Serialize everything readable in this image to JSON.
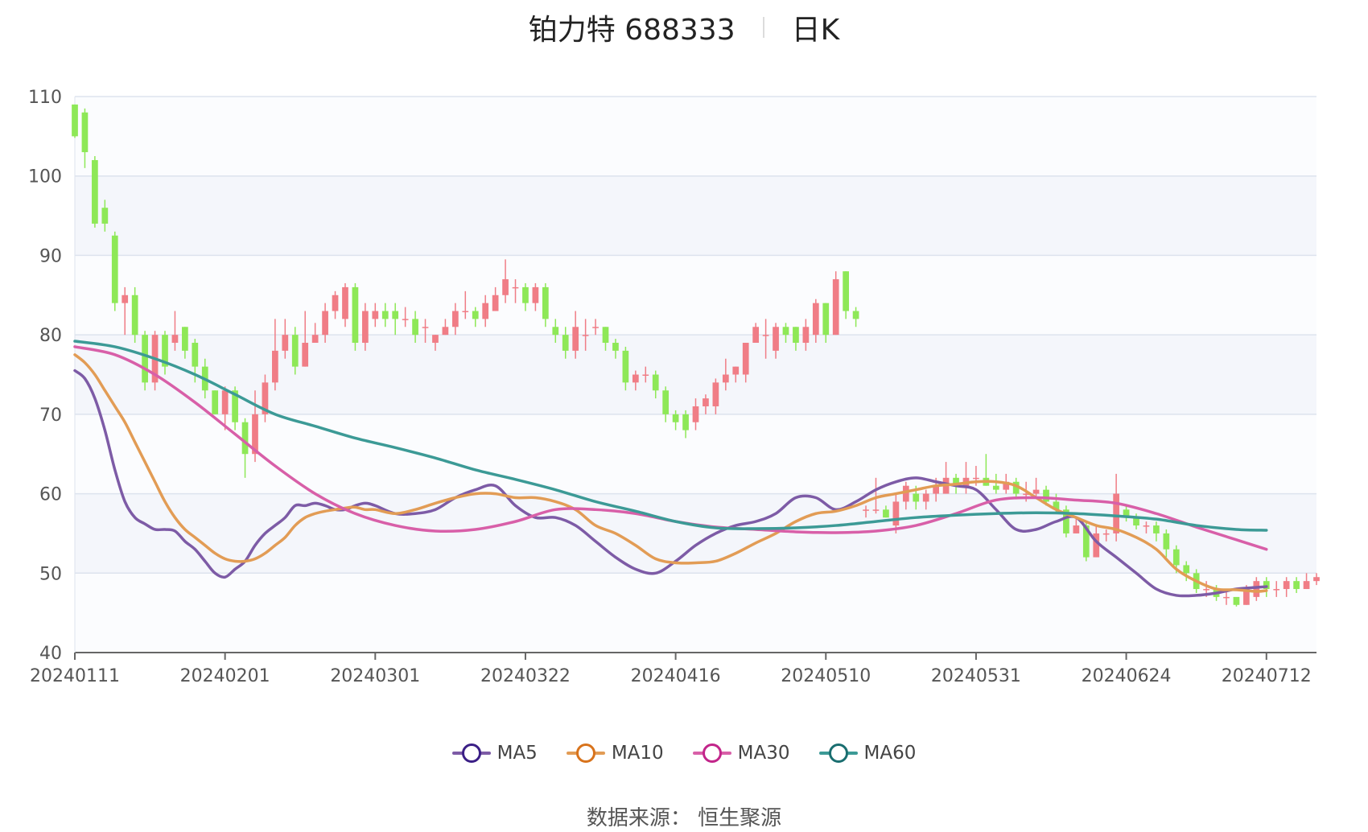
{
  "title": {
    "name": "铂力特 688333",
    "period": "日K"
  },
  "source": "数据来源： 恒生聚源",
  "colors": {
    "up": "#f07d86",
    "down": "#8ee857",
    "MA5": "#7d5ba6",
    "MA10": "#e29c55",
    "MA30": "#d85fa8",
    "MA60": "#3c9a96",
    "grid": "#dde3ee",
    "band": "#f4f6fb"
  },
  "legend": [
    {
      "name": "MA5",
      "color": "#7d5ba6",
      "ring": "#3b1f86"
    },
    {
      "name": "MA10",
      "color": "#e29c55",
      "ring": "#d8731c"
    },
    {
      "name": "MA30",
      "color": "#d85fa8",
      "ring": "#c2258a"
    },
    {
      "name": "MA60",
      "color": "#3c9a96",
      "ring": "#1a6e70"
    }
  ],
  "chart_data": {
    "type": "candlestick",
    "ylim": [
      40,
      110
    ],
    "yticks": [
      40,
      50,
      60,
      70,
      80,
      90,
      100,
      110
    ],
    "xtick_labels": [
      "20240111",
      "20240201",
      "20240301",
      "20240322",
      "20240416",
      "20240510",
      "20240531",
      "20240624",
      "20240712"
    ],
    "xtick_index": [
      0,
      15,
      30,
      45,
      60,
      75,
      90,
      105,
      119
    ],
    "grid": true,
    "legend_position": "bottom",
    "candles": [
      [
        109,
        105,
        109,
        104.8
      ],
      [
        108,
        103,
        108.5,
        101
      ],
      [
        102,
        94,
        102.5,
        93.5
      ],
      [
        96,
        94,
        97,
        93
      ],
      [
        92.5,
        84,
        93,
        83
      ],
      [
        84,
        85,
        86,
        80
      ],
      [
        85,
        80,
        86,
        79
      ],
      [
        80,
        74,
        80.5,
        73
      ],
      [
        74,
        80,
        80.5,
        73
      ],
      [
        80,
        76,
        80.5,
        75
      ],
      [
        79,
        80,
        83,
        78
      ],
      [
        81,
        78,
        81,
        77
      ],
      [
        79,
        76,
        79.5,
        74
      ],
      [
        76,
        73,
        77,
        72
      ],
      [
        73,
        70,
        73,
        70
      ],
      [
        70,
        73,
        73.5,
        68
      ],
      [
        73,
        69,
        73.5,
        68
      ],
      [
        69,
        65,
        69.5,
        62
      ],
      [
        65,
        70,
        73,
        64
      ],
      [
        70,
        74,
        75,
        69
      ],
      [
        74,
        78,
        82,
        73
      ],
      [
        78,
        80,
        82,
        77
      ],
      [
        80,
        76,
        81,
        75
      ],
      [
        76,
        79,
        83,
        76
      ],
      [
        79,
        80,
        81.5,
        79
      ],
      [
        80,
        83,
        84,
        79
      ],
      [
        83,
        85,
        85.5,
        82
      ],
      [
        82,
        86,
        86.5,
        81
      ],
      [
        86,
        79,
        86.5,
        78
      ],
      [
        79,
        83,
        84,
        78
      ],
      [
        82,
        83,
        84,
        81
      ],
      [
        83,
        82,
        84,
        81
      ],
      [
        83,
        82,
        84,
        80
      ],
      [
        82,
        82,
        83.5,
        81
      ],
      [
        82,
        80,
        83,
        79
      ],
      [
        81,
        81,
        82,
        79
      ],
      [
        79,
        80,
        80,
        78
      ],
      [
        80,
        81,
        82,
        80
      ],
      [
        81,
        83,
        84,
        80
      ],
      [
        83,
        83,
        85.5,
        82
      ],
      [
        83,
        82,
        83.5,
        81
      ],
      [
        82,
        84,
        85,
        81
      ],
      [
        83,
        85,
        86,
        83
      ],
      [
        85,
        87,
        89.5,
        84
      ],
      [
        86,
        86,
        87,
        84
      ],
      [
        86,
        84,
        86.5,
        83
      ],
      [
        84,
        86,
        86.5,
        83
      ],
      [
        86,
        82,
        86.5,
        81
      ],
      [
        81,
        80,
        82,
        79
      ],
      [
        80,
        78,
        81,
        77
      ],
      [
        78,
        81,
        83,
        77
      ],
      [
        80,
        80,
        82,
        78
      ],
      [
        81,
        81,
        82,
        80
      ],
      [
        81,
        79,
        81,
        78
      ],
      [
        79,
        78,
        79.5,
        77
      ],
      [
        78,
        74,
        78.5,
        73
      ],
      [
        74,
        75,
        75.5,
        73
      ],
      [
        75,
        75,
        76,
        74
      ],
      [
        75,
        73,
        75.5,
        72
      ],
      [
        73,
        70,
        73.5,
        69
      ],
      [
        70,
        69,
        70.5,
        68
      ],
      [
        70,
        68,
        70.5,
        67
      ],
      [
        69,
        71,
        72,
        68
      ],
      [
        71,
        72,
        72.5,
        70
      ],
      [
        71,
        74,
        74.5,
        70
      ],
      [
        74,
        75,
        77,
        73
      ],
      [
        75,
        76,
        76,
        74
      ],
      [
        75,
        79,
        79,
        74
      ],
      [
        79,
        81,
        81.5,
        79
      ],
      [
        80,
        80,
        82,
        77
      ],
      [
        78,
        81,
        81.5,
        77
      ],
      [
        81,
        80,
        81.5,
        79
      ],
      [
        81,
        79,
        81,
        78
      ],
      [
        79,
        81,
        82,
        78
      ],
      [
        80,
        84,
        84.5,
        79
      ],
      [
        84,
        80,
        84,
        79
      ],
      [
        80,
        87,
        88,
        80
      ],
      [
        88,
        83,
        88,
        82
      ],
      [
        83,
        82,
        83.5,
        81
      ],
      [
        58,
        58,
        58.5,
        57
      ],
      [
        58,
        58,
        62,
        57.5
      ],
      [
        58,
        57,
        58.5,
        57
      ],
      [
        56,
        59,
        60,
        55
      ],
      [
        59,
        61,
        61.5,
        58
      ],
      [
        60,
        59,
        61,
        58
      ],
      [
        59,
        60,
        60.5,
        58
      ],
      [
        60,
        61,
        62,
        59
      ],
      [
        60,
        62,
        64,
        60
      ],
      [
        62,
        61,
        62.5,
        60
      ],
      [
        61,
        62,
        64,
        60
      ],
      [
        62,
        62,
        63.5,
        61
      ],
      [
        62,
        61,
        65,
        61
      ],
      [
        61,
        60.5,
        62.5,
        60
      ],
      [
        60.5,
        61.5,
        62.5,
        60
      ],
      [
        61.5,
        60,
        62,
        59.5
      ],
      [
        60,
        60,
        61.5,
        59
      ],
      [
        60,
        60.5,
        62,
        59.5
      ],
      [
        60.5,
        59,
        61,
        58.5
      ],
      [
        59,
        58,
        60,
        57.5
      ],
      [
        58,
        55,
        58.5,
        54.5
      ],
      [
        55,
        56,
        57,
        55
      ],
      [
        56,
        52,
        56.5,
        51.5
      ],
      [
        52,
        55,
        56,
        52
      ],
      [
        55,
        55,
        55.5,
        54
      ],
      [
        55,
        60,
        62.5,
        54
      ],
      [
        58,
        57,
        58.5,
        56.5
      ],
      [
        57,
        56,
        57.5,
        55.5
      ],
      [
        56,
        56,
        56.5,
        55
      ],
      [
        56,
        55,
        56.5,
        54
      ],
      [
        55,
        53,
        55.5,
        52
      ],
      [
        53,
        51,
        53.5,
        50
      ],
      [
        51,
        50,
        51.5,
        49
      ],
      [
        50,
        48,
        50.5,
        47.5
      ],
      [
        48,
        48,
        49,
        47
      ],
      [
        48,
        47,
        48.5,
        46.5
      ],
      [
        47,
        47,
        48,
        46
      ],
      [
        47,
        46,
        46.5,
        45.8
      ],
      [
        46,
        48,
        48.5,
        46
      ],
      [
        47,
        49,
        49.5,
        46.5
      ],
      [
        49,
        48,
        49.5,
        47
      ],
      [
        48,
        48,
        49,
        47
      ],
      [
        48,
        49,
        49.5,
        47
      ],
      [
        49,
        48,
        49.5,
        47.5
      ],
      [
        48,
        49,
        50,
        48
      ],
      [
        49,
        49.5,
        50,
        48.5
      ]
    ],
    "series": [
      {
        "name": "MA5",
        "x": [
          0,
          1,
          2,
          3,
          4,
          5,
          6,
          7,
          8,
          9,
          10,
          11,
          12,
          13,
          14,
          15,
          16,
          17,
          18,
          19,
          20,
          21,
          22,
          23,
          24,
          25,
          26,
          27,
          28,
          29,
          30,
          32,
          34,
          36,
          38,
          40,
          42,
          44,
          46,
          48,
          50,
          52,
          54,
          56,
          58,
          60,
          62,
          64,
          66,
          68,
          70,
          72,
          74,
          76,
          78,
          80,
          82,
          84,
          86,
          88,
          90,
          92,
          94,
          96,
          98,
          100,
          102,
          104,
          106,
          108,
          110,
          112,
          114,
          116,
          118,
          119
        ],
        "y": [
          75.5,
          74.5,
          72,
          68,
          63,
          59,
          57,
          56.2,
          55.5,
          55.5,
          55.3,
          54,
          53,
          51.5,
          50,
          49.5,
          50.5,
          51.5,
          53.5,
          55,
          56,
          57,
          58.5,
          58.5,
          58.8,
          58.5,
          58,
          58,
          58.5,
          58.8,
          58.5,
          57.5,
          57.5,
          58,
          59.5,
          60.5,
          61,
          58.5,
          57,
          57,
          56,
          54,
          52,
          50.5,
          50,
          51.5,
          53.5,
          55,
          56,
          56.5,
          57.5,
          59.5,
          59.5,
          58,
          59,
          60.5,
          61.5,
          62,
          61.5,
          61,
          60.5,
          58,
          55.5,
          55.5,
          56.5,
          57,
          54,
          52,
          50,
          48,
          47.2,
          47.2,
          47.5,
          48,
          48.2,
          48.3
        ]
      },
      {
        "name": "MA10",
        "x": [
          0,
          1,
          2,
          3,
          4,
          5,
          6,
          7,
          8,
          9,
          10,
          11,
          12,
          13,
          14,
          15,
          16,
          17,
          18,
          19,
          20,
          21,
          22,
          23,
          24,
          25,
          26,
          27,
          28,
          29,
          30,
          32,
          34,
          36,
          38,
          40,
          42,
          44,
          46,
          48,
          50,
          52,
          54,
          56,
          58,
          60,
          62,
          64,
          66,
          68,
          70,
          72,
          74,
          76,
          78,
          80,
          82,
          84,
          86,
          88,
          90,
          92,
          94,
          96,
          98,
          100,
          102,
          104,
          106,
          108,
          110,
          112,
          114,
          116,
          118,
          119
        ],
        "y": [
          77.5,
          76.5,
          75,
          73,
          71,
          69,
          66.5,
          64,
          61.5,
          59,
          57,
          55.5,
          54.5,
          53.5,
          52.5,
          51.8,
          51.5,
          51.5,
          51.8,
          52.5,
          53.5,
          54.5,
          56,
          57,
          57.5,
          57.8,
          58,
          58.2,
          58.3,
          58,
          58,
          57.5,
          58,
          58.8,
          59.5,
          60,
          60,
          59.5,
          59.5,
          59,
          58,
          56,
          55,
          53.5,
          51.8,
          51.3,
          51.3,
          51.5,
          52.5,
          53.8,
          55,
          56.5,
          57.5,
          57.8,
          58.5,
          59.5,
          60,
          60.5,
          61,
          61.2,
          61.5,
          61.5,
          61,
          59.5,
          58,
          57,
          56,
          55.5,
          54.5,
          53,
          50.5,
          49,
          48,
          47.9,
          47.7,
          47.8
        ]
      },
      {
        "name": "MA30",
        "x": [
          0,
          4,
          8,
          12,
          16,
          20,
          24,
          28,
          32,
          36,
          40,
          44,
          48,
          52,
          56,
          60,
          64,
          68,
          72,
          76,
          80,
          84,
          88,
          92,
          96,
          100,
          104,
          108,
          112,
          116,
          119
        ],
        "y": [
          78.5,
          77.5,
          75,
          71.5,
          67.5,
          63.5,
          60,
          57.5,
          56,
          55.3,
          55.5,
          56.5,
          58,
          58,
          57.5,
          56.5,
          55.8,
          55.5,
          55.2,
          55.1,
          55.3,
          56,
          57.5,
          59.2,
          59.5,
          59.2,
          58.8,
          57.5,
          55.8,
          54.2,
          53
        ]
      },
      {
        "name": "MA60",
        "x": [
          0,
          4,
          8,
          12,
          16,
          20,
          24,
          28,
          32,
          36,
          40,
          44,
          48,
          52,
          56,
          60,
          64,
          68,
          72,
          76,
          80,
          84,
          88,
          92,
          96,
          100,
          104,
          108,
          112,
          116,
          119
        ],
        "y": [
          79.2,
          78.5,
          77,
          75,
          72.5,
          70,
          68.5,
          67,
          65.8,
          64.5,
          63,
          61.8,
          60.5,
          59,
          57.8,
          56.5,
          55.7,
          55.6,
          55.7,
          56,
          56.5,
          57,
          57.3,
          57.5,
          57.6,
          57.5,
          57.2,
          56.8,
          56,
          55.5,
          55.4
        ]
      }
    ]
  }
}
